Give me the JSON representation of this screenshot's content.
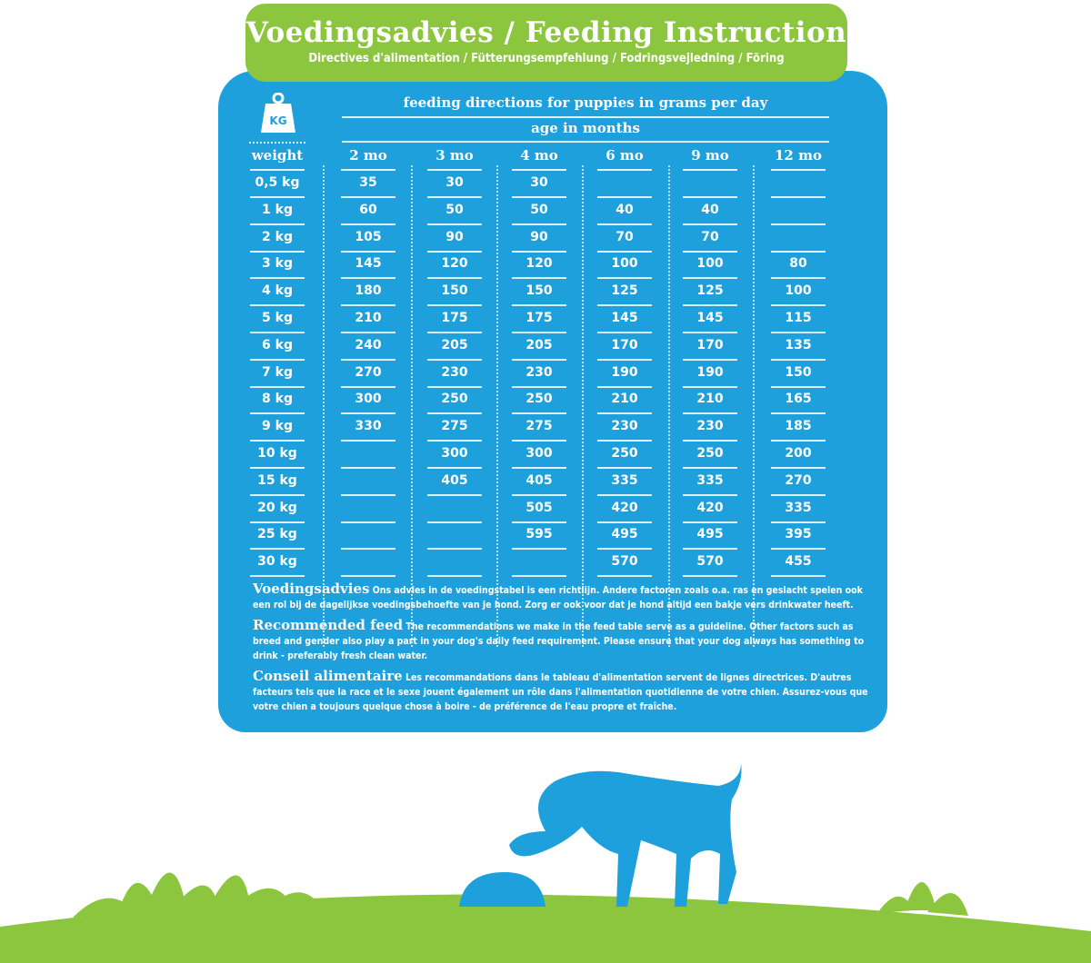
{
  "banner": {
    "title": "Voedingsadvies / Feeding Instruction",
    "subtitle": "Directives d'alimentation / Fütterungsempfehlung / Fodringsvejledning / Föring"
  },
  "weight_icon": {
    "label": "KG"
  },
  "table": {
    "title": "feeding directions for puppies in grams per day",
    "subtitle": "age in months",
    "weight_header": "weight",
    "columns": [
      "2 mo",
      "3 mo",
      "4 mo",
      "6 mo",
      "9 mo",
      "12 mo"
    ],
    "rows": [
      {
        "weight": "0,5 kg",
        "values": [
          "35",
          "30",
          "30",
          "",
          "",
          ""
        ]
      },
      {
        "weight": "1 kg",
        "values": [
          "60",
          "50",
          "50",
          "40",
          "40",
          ""
        ]
      },
      {
        "weight": "2 kg",
        "values": [
          "105",
          "90",
          "90",
          "70",
          "70",
          ""
        ]
      },
      {
        "weight": "3 kg",
        "values": [
          "145",
          "120",
          "120",
          "100",
          "100",
          "80"
        ]
      },
      {
        "weight": "4 kg",
        "values": [
          "180",
          "150",
          "150",
          "125",
          "125",
          "100"
        ]
      },
      {
        "weight": "5 kg",
        "values": [
          "210",
          "175",
          "175",
          "145",
          "145",
          "115"
        ]
      },
      {
        "weight": "6 kg",
        "values": [
          "240",
          "205",
          "205",
          "170",
          "170",
          "135"
        ]
      },
      {
        "weight": "7 kg",
        "values": [
          "270",
          "230",
          "230",
          "190",
          "190",
          "150"
        ]
      },
      {
        "weight": "8 kg",
        "values": [
          "300",
          "250",
          "250",
          "210",
          "210",
          "165"
        ]
      },
      {
        "weight": "9 kg",
        "values": [
          "330",
          "275",
          "275",
          "230",
          "230",
          "185"
        ]
      },
      {
        "weight": "10 kg",
        "values": [
          "",
          "300",
          "300",
          "250",
          "250",
          "200"
        ]
      },
      {
        "weight": "15 kg",
        "values": [
          "",
          "405",
          "405",
          "335",
          "335",
          "270"
        ]
      },
      {
        "weight": "20 kg",
        "values": [
          "",
          "",
          "505",
          "420",
          "420",
          "335"
        ]
      },
      {
        "weight": "25 kg",
        "values": [
          "",
          "",
          "595",
          "495",
          "495",
          "395"
        ]
      },
      {
        "weight": "30 kg",
        "values": [
          "",
          "",
          "",
          "570",
          "570",
          "455"
        ]
      }
    ]
  },
  "notes": [
    {
      "heading": "Voedingsadvies",
      "text": "Ons advies in de voedingstabel is een richtlijn. Andere factoren zoals o.a. ras en geslacht spelen ook een rol bij de dagelijkse voedingsbehoefte van je hond. Zorg er ook voor dat je hond altijd een bakje vers drinkwater heeft."
    },
    {
      "heading": "Recommended feed",
      "text": "The recommendations we make in the feed table serve as a guideline. Other factors such as breed and gender also play a part in your dog's daily feed requirement. Please ensure that your dog always has something to drink - preferably fresh clean water."
    },
    {
      "heading": "Conseil alimentaire",
      "text": "Les recommandations dans le tableau d'alimentation servent de lignes directrices. D'autres facteurs tels que la race et le sexe jouent également un rôle dans l'alimentation quotidienne de votre chien. Assurez-vous que votre chien a toujours quelque chose à boire - de préférence de l'eau propre et fraîche."
    }
  ],
  "colors": {
    "blue": "#1ea0dc",
    "green": "#8cc63f"
  }
}
